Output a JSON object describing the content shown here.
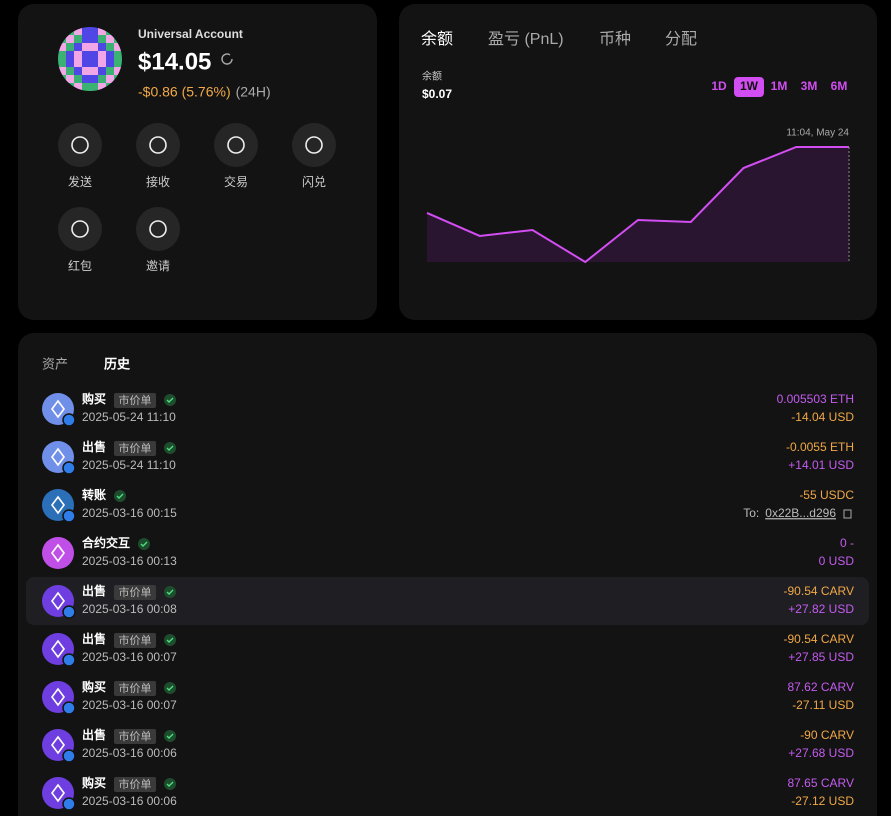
{
  "account": {
    "name": "Universal Account",
    "balance": "$14.05",
    "change": "-$0.86 (5.76%)",
    "period": "(24H)"
  },
  "actions": [
    "发送",
    "接收",
    "交易",
    "闪兑",
    "红包",
    "邀请"
  ],
  "chart_tabs": [
    "余额",
    "盈亏 (PnL)",
    "币种",
    "分配"
  ],
  "balance_label": "余额",
  "balance_value": "$0.07",
  "ranges": [
    "1D",
    "1W",
    "1M",
    "3M",
    "6M"
  ],
  "chart_data": {
    "type": "line",
    "annotation": "11:04, May 24",
    "categories": [
      null,
      null,
      null,
      null,
      null,
      null,
      null,
      null,
      null
    ],
    "series": [
      {
        "color": "#d24ef2",
        "values": [
          5.99,
          3.18,
          3.91,
          0,
          5.13,
          4.89,
          11.48,
          14.05,
          14.05
        ]
      }
    ],
    "ylim": [
      0,
      14.05
    ]
  },
  "history_tabs": [
    "资产",
    "历史"
  ],
  "history": [
    {
      "title": "购买",
      "tag": "市价单",
      "time": "2025-05-24 11:10",
      "line1": "0.005503 ETH",
      "color1": "#c45cf0",
      "line2": "-14.04 USD",
      "color2": "#f0a848"
    },
    {
      "title": "出售",
      "tag": "市价单",
      "time": "2025-05-24 11:10",
      "line1": "-0.0055 ETH",
      "color1": "#f0a848",
      "line2": "+14.01 USD",
      "color2": "#c45cf0"
    },
    {
      "title": "转账",
      "time": "2025-03-16 00:15",
      "line1": "-55 USDC",
      "color1": "#f0a848",
      "to": "To:",
      "address": "0x22B...d296"
    },
    {
      "title": "合约交互",
      "time": "2025-03-16 00:13",
      "line1": "0 -",
      "color1": "#c45cf0",
      "line2": "0 USD",
      "color2": "#c45cf0"
    },
    {
      "title": "出售",
      "tag": "市价单",
      "time": "2025-03-16 00:08",
      "line1": "-90.54 CARV",
      "color1": "#f0a848",
      "line2": "+27.82 USD",
      "color2": "#c45cf0"
    },
    {
      "title": "出售",
      "tag": "市价单",
      "time": "2025-03-16 00:07",
      "line1": "-90.54 CARV",
      "color1": "#f0a848",
      "line2": "+27.85 USD",
      "color2": "#c45cf0"
    },
    {
      "title": "购买",
      "tag": "市价单",
      "time": "2025-03-16 00:07",
      "line1": "87.62 CARV",
      "color1": "#c45cf0",
      "line2": "-27.11 USD",
      "color2": "#f0a848"
    },
    {
      "title": "出售",
      "tag": "市价单",
      "time": "2025-03-16 00:06",
      "line1": "-90 CARV",
      "color1": "#f0a848",
      "line2": "+27.68 USD",
      "color2": "#c45cf0"
    },
    {
      "title": "购买",
      "tag": "市价单",
      "time": "2025-03-16 00:06",
      "line1": "87.65 CARV",
      "color1": "#c45cf0",
      "line2": "-27.12 USD",
      "color2": "#f0a848"
    }
  ]
}
